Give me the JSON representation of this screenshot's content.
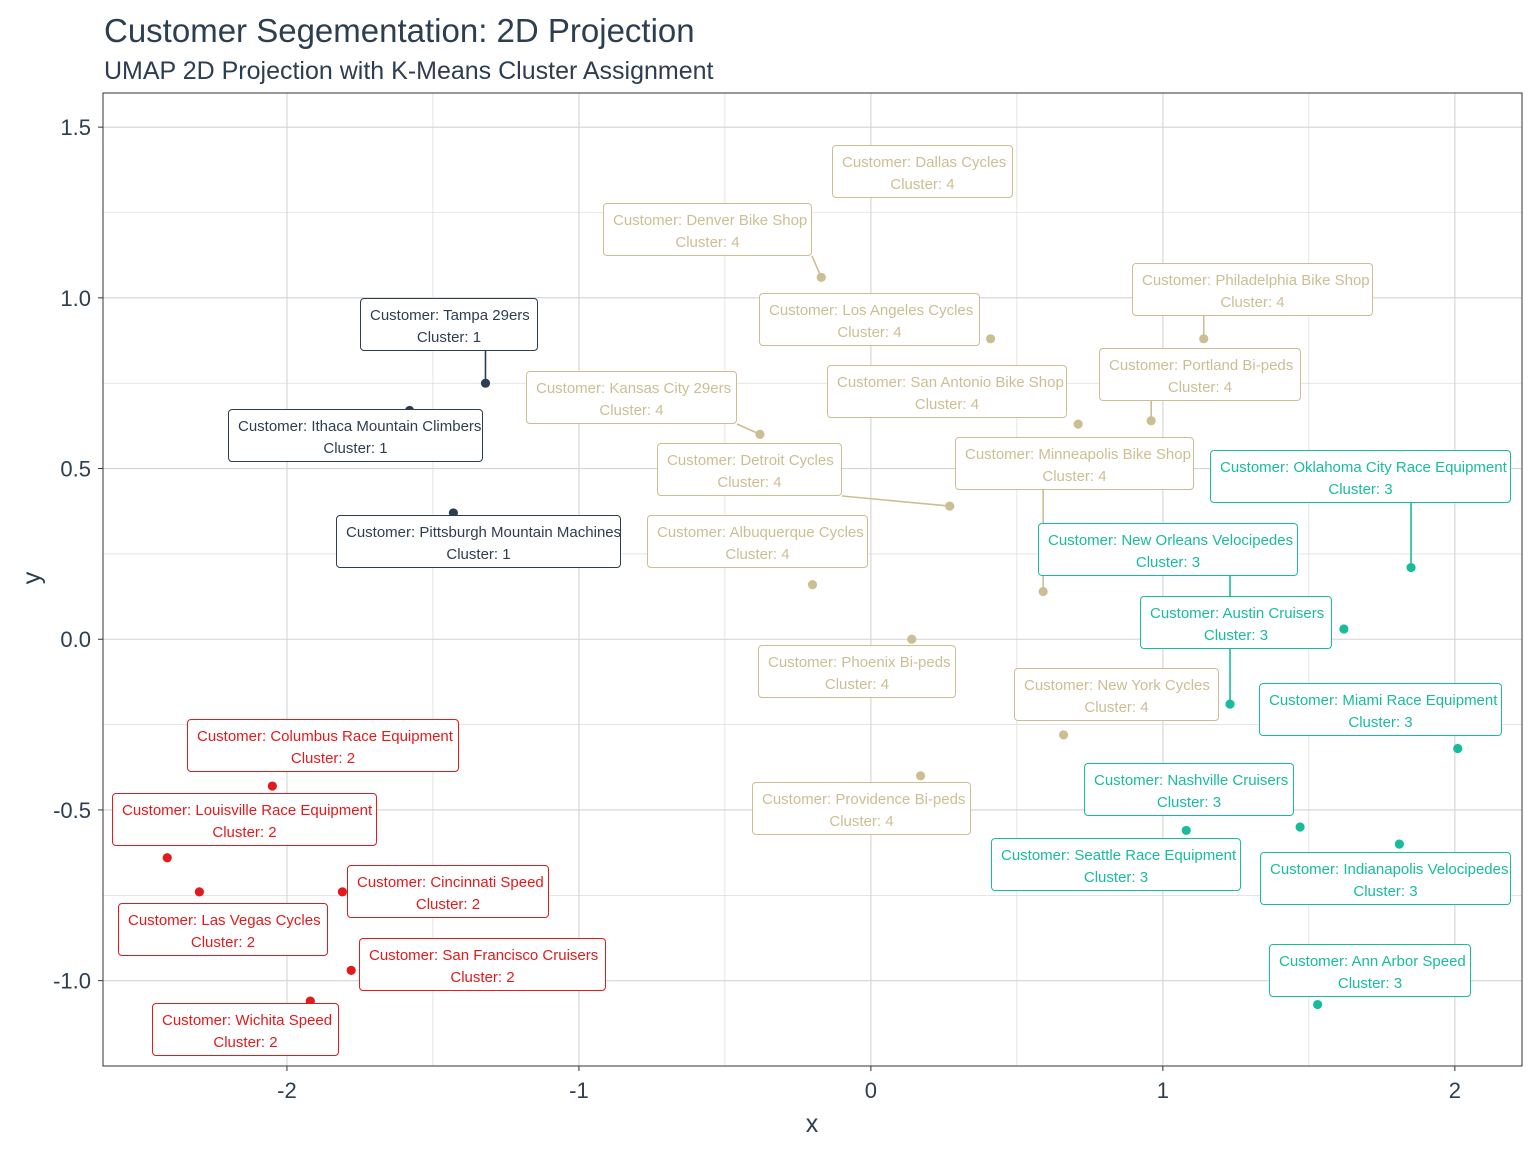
{
  "chart_data": {
    "type": "scatter",
    "title": "Customer Segementation: 2D Projection",
    "subtitle": "UMAP 2D Projection with K-Means Cluster Assignment",
    "xlabel": "x",
    "ylabel": "y",
    "xlim": [
      -2.63,
      2.23
    ],
    "ylim": [
      -1.25,
      1.6
    ],
    "x_ticks": [
      -2,
      -1,
      0,
      1,
      2
    ],
    "x_tick_labels": [
      "-2",
      "-1",
      "0",
      "1",
      "2"
    ],
    "y_ticks": [
      1.5,
      1.0,
      0.5,
      0.0,
      -0.5,
      -1.0
    ],
    "y_tick_labels": [
      "1.5",
      "1.0",
      "0.5",
      "0.0",
      "-0.5",
      "-1.0"
    ],
    "grid": true,
    "cluster_colors": {
      "1": "#2c3e50",
      "2": "#e31a1c",
      "3": "#18bc9c",
      "4": "#ccbe93"
    },
    "points": [
      {
        "customer": "Customer: Tampa 29ers",
        "cluster": "Cluster: 1",
        "c": "1",
        "x": -1.32,
        "y": 0.75
      },
      {
        "customer": "Customer: Ithaca Mountain Climbers",
        "cluster": "Cluster: 1",
        "c": "1",
        "x": -1.58,
        "y": 0.67
      },
      {
        "customer": "Customer: Pittsburgh Mountain Machines",
        "cluster": "Cluster: 1",
        "c": "1",
        "x": -1.43,
        "y": 0.37
      },
      {
        "customer": "Customer: Columbus Race Equipment",
        "cluster": "Cluster: 2",
        "c": "2",
        "x": -2.05,
        "y": -0.43
      },
      {
        "customer": "Customer: Louisville Race Equipment",
        "cluster": "Cluster: 2",
        "c": "2",
        "x": -2.41,
        "y": -0.64
      },
      {
        "customer": "Customer: Las Vegas Cycles",
        "cluster": "Cluster: 2",
        "c": "2",
        "x": -2.3,
        "y": -0.74
      },
      {
        "customer": "Customer: Cincinnati Speed",
        "cluster": "Cluster: 2",
        "c": "2",
        "x": -1.81,
        "y": -0.74
      },
      {
        "customer": "Customer: San Francisco Cruisers",
        "cluster": "Cluster: 2",
        "c": "2",
        "x": -1.78,
        "y": -0.97
      },
      {
        "customer": "Customer: Wichita Speed",
        "cluster": "Cluster: 2",
        "c": "2",
        "x": -1.92,
        "y": -1.06
      },
      {
        "customer": "Customer: Oklahoma City Race Equipment",
        "cluster": "Cluster: 3",
        "c": "3",
        "x": 1.85,
        "y": 0.21
      },
      {
        "customer": "Customer: New Orleans Velocipedes",
        "cluster": "Cluster: 3",
        "c": "3",
        "x": 1.23,
        "y": -0.19
      },
      {
        "customer": "Customer: Austin Cruisers",
        "cluster": "Cluster: 3",
        "c": "3",
        "x": 1.62,
        "y": 0.03
      },
      {
        "customer": "Customer: Miami Race Equipment",
        "cluster": "Cluster: 3",
        "c": "3",
        "x": 2.01,
        "y": -0.32
      },
      {
        "customer": "Customer: Nashville Cruisers",
        "cluster": "Cluster: 3",
        "c": "3",
        "x": 1.47,
        "y": -0.55
      },
      {
        "customer": "Customer: Seattle Race Equipment",
        "cluster": "Cluster: 3",
        "c": "3",
        "x": 1.08,
        "y": -0.56
      },
      {
        "customer": "Customer: Indianapolis Velocipedes",
        "cluster": "Cluster: 3",
        "c": "3",
        "x": 1.81,
        "y": -0.6
      },
      {
        "customer": "Customer: Ann Arbor Speed",
        "cluster": "Cluster: 3",
        "c": "3",
        "x": 1.53,
        "y": -1.07
      },
      {
        "customer": "Customer: Dallas Cycles",
        "cluster": "Cluster: 4",
        "c": "4",
        "x": 0.36,
        "y": 1.43
      },
      {
        "customer": "Customer: Denver Bike Shop",
        "cluster": "Cluster: 4",
        "c": "4",
        "x": -0.17,
        "y": 1.06
      },
      {
        "customer": "Customer: Los Angeles Cycles",
        "cluster": "Cluster: 4",
        "c": "4",
        "x": 0.41,
        "y": 0.88
      },
      {
        "customer": "Customer: Philadelphia Bike Shop",
        "cluster": "Cluster: 4",
        "c": "4",
        "x": 1.14,
        "y": 0.88
      },
      {
        "customer": "Customer: Kansas City 29ers",
        "cluster": "Cluster: 4",
        "c": "4",
        "x": -0.38,
        "y": 0.6
      },
      {
        "customer": "Customer: San Antonio Bike Shop",
        "cluster": "Cluster: 4",
        "c": "4",
        "x": 0.71,
        "y": 0.63
      },
      {
        "customer": "Customer: Portland Bi-peds",
        "cluster": "Cluster: 4",
        "c": "4",
        "x": 0.96,
        "y": 0.64
      },
      {
        "customer": "Customer: Detroit Cycles",
        "cluster": "Cluster: 4",
        "c": "4",
        "x": 0.27,
        "y": 0.39
      },
      {
        "customer": "Customer: Minneapolis Bike Shop",
        "cluster": "Cluster: 4",
        "c": "4",
        "x": 0.59,
        "y": 0.14
      },
      {
        "customer": "Customer: Albuquerque Cycles",
        "cluster": "Cluster: 4",
        "c": "4",
        "x": -0.2,
        "y": 0.16
      },
      {
        "customer": "Customer: Phoenix Bi-peds",
        "cluster": "Cluster: 4",
        "c": "4",
        "x": 0.14,
        "y": 0.0
      },
      {
        "customer": "Customer: New York Cycles",
        "cluster": "Cluster: 4",
        "c": "4",
        "x": 0.66,
        "y": -0.28
      },
      {
        "customer": "Customer: Providence Bi-peds",
        "cluster": "Cluster: 4",
        "c": "4",
        "x": 0.17,
        "y": -0.4
      }
    ]
  }
}
